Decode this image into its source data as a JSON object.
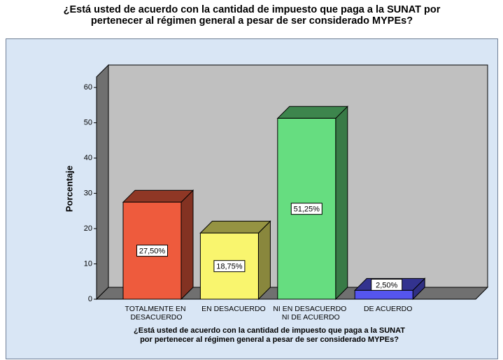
{
  "chart_data": {
    "type": "bar3d",
    "title": [
      "¿Está usted de acuerdo con la cantidad de impuesto que paga a la SUNAT por",
      "pertenecer al régimen general a pesar de ser considerado MYPEs?"
    ],
    "x_label": [
      "¿Está usted de acuerdo con la cantidad de impuesto que paga a la SUNAT",
      "por pertenecer al régimen general a pesar de ser considerado MYPEs?"
    ],
    "y_label": "Porcentaje",
    "categories": [
      "TOTALMENTE EN DESACUERDO",
      "EN DESACUERDO",
      "NI EN DESACUERDO NI DE ACUERDO",
      "DE ACUERDO"
    ],
    "values": [
      27.5,
      18.75,
      51.25,
      2.5
    ],
    "value_labels": [
      "27,50%",
      "18,75%",
      "51,25%",
      "2,50%"
    ],
    "colors": [
      "#ee5b3d",
      "#f9f56e",
      "#66dd80",
      "#5555ee"
    ],
    "ylim": [
      0,
      63
    ],
    "yticks": [
      0,
      10,
      20,
      30,
      40,
      50,
      60
    ]
  }
}
